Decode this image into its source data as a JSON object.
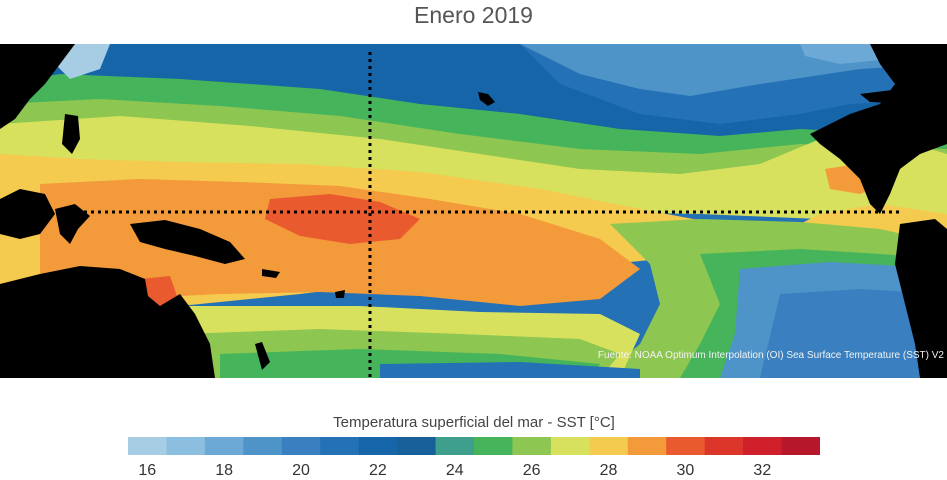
{
  "title": "Enero 2019",
  "source_note": "Fuente: NOAA Optimum Interpolation (OI) Sea Surface Temperature (SST) V2",
  "legend": {
    "title": "Temperatura superficial del mar - SST  [°C]",
    "tick_labels": [
      "16",
      "18",
      "20",
      "22",
      "24",
      "26",
      "28",
      "30",
      "32"
    ],
    "colors": [
      "#a6cde4",
      "#8cbfdf",
      "#6ca9d6",
      "#4e94c9",
      "#3a80c0",
      "#2472b5",
      "#1665a8",
      "#17609a",
      "#3f9f8d",
      "#45b45a",
      "#8dc650",
      "#d8e15e",
      "#f4ca4f",
      "#f39a3a",
      "#ea5a2f",
      "#dc3529",
      "#cf1f2a",
      "#b6172b"
    ]
  },
  "map": {
    "land_color": "#000000",
    "grid_line_color": "#000000"
  }
}
